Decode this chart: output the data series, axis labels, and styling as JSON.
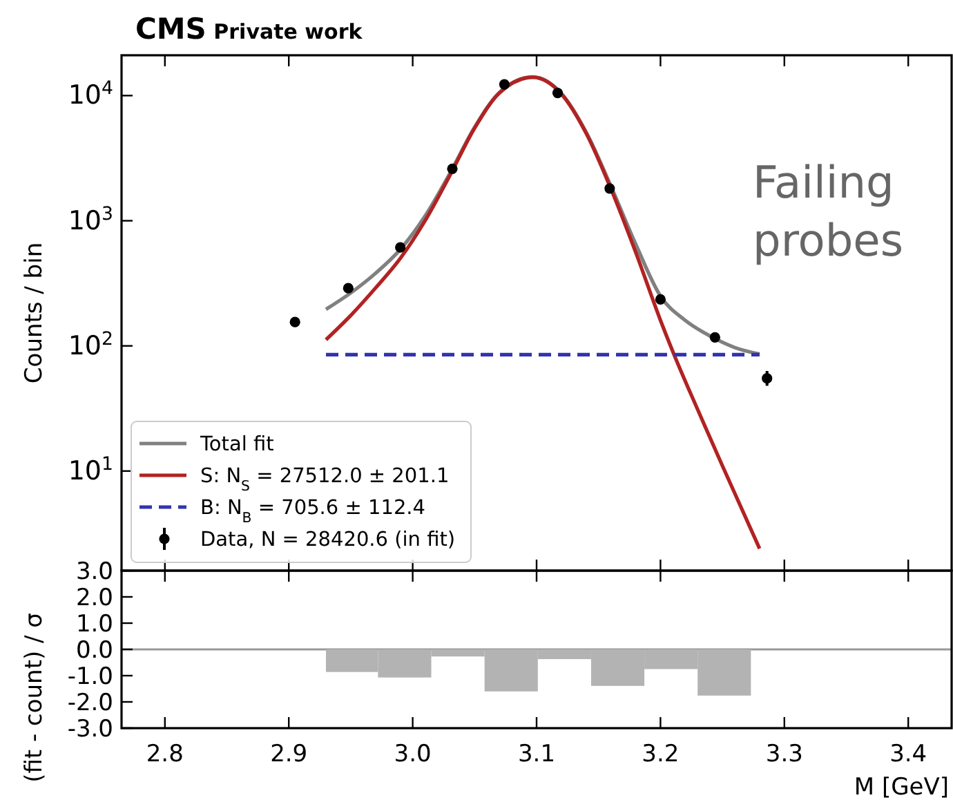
{
  "chart_data": [
    {
      "type": "line",
      "title": "CMS Private work",
      "ylabel": "Counts / bin",
      "log": true,
      "legend": "bottom left",
      "xlim": [
        2.765,
        3.435
      ],
      "xticks": [
        2.8,
        2.9,
        3,
        3.1,
        3.2,
        3.3,
        3.4
      ],
      "tick_labels": "y",
      "ylim": [
        1.6,
        21000
      ],
      "yticks": [
        {
          "value": 10,
          "label": "10$^{1}$"
        },
        {
          "value": 100,
          "label": "10$^{2}$"
        },
        {
          "value": 1000,
          "label": "10$^{3}$"
        },
        {
          "value": 10000,
          "label": "10$^{4}$"
        }
      ],
      "annotations": [
        "Failing probes"
      ],
      "series": [
        {
          "name": "Total fit",
          "color": "#808080",
          "x": [
            2.93,
            2.95,
            2.97,
            2.99,
            3.01,
            3.03,
            3.05,
            3.07,
            3.097,
            3.12,
            3.14,
            3.16,
            3.18,
            3.2,
            3.22,
            3.24,
            3.26,
            3.28
          ],
          "values": [
            196,
            265,
            380,
            590,
            1090,
            2390,
            5590,
            10600,
            14100,
            10400,
            5100,
            1890,
            650,
            250,
            160,
            120,
            97,
            86
          ]
        },
        {
          "name": "S: N$_{S}$ = 27512.0 ± 201.1",
          "color": "#b22222",
          "x": [
            2.93,
            2.95,
            2.97,
            2.99,
            3.01,
            3.03,
            3.05,
            3.07,
            3.097,
            3.12,
            3.14,
            3.16,
            3.18,
            3.2,
            3.211,
            3.23,
            3.25,
            3.28
          ],
          "values": [
            112,
            175,
            290,
            500,
            1000,
            2300,
            5500,
            10500,
            14000,
            10300,
            5000,
            1800,
            560,
            160,
            85,
            31,
            11,
            2.4
          ]
        },
        {
          "name": "B: N$_{B}$ = 705.6 ± 112.4",
          "line_style": "dashed",
          "color": "#3333b0",
          "x": [
            2.93,
            3.28
          ],
          "values": [
            85,
            85
          ]
        },
        {
          "name": "Data, N = 28420.6 (in fit)",
          "type": "scatter",
          "marker": "circle",
          "color": "#000000",
          "x": [
            2.905,
            2.948,
            2.99,
            3.032,
            3.074,
            3.117,
            3.159,
            3.2,
            3.244,
            3.286
          ],
          "values": [
            155,
            289,
            612,
            2600,
            12300,
            10500,
            1810,
            235,
            117,
            55
          ],
          "errors": [
            null,
            null,
            null,
            null,
            null,
            null,
            null,
            null,
            null,
            [
              48,
              63
            ]
          ]
        }
      ]
    },
    {
      "type": "histogram",
      "xlabel": "M [GeV]",
      "ylabel": "(fit - count) / σ",
      "color": "#b3b3b3",
      "xlim": [
        2.765,
        3.435
      ],
      "xticks": [
        2.8,
        2.9,
        {
          "value": 3,
          "label": "3.0"
        },
        3.1,
        3.2,
        3.3,
        3.4
      ],
      "ylim": [
        -3,
        3
      ],
      "yticks": [
        {
          "value": -3,
          "label": "-3.0"
        },
        {
          "value": -2,
          "label": "-2.0"
        },
        {
          "value": -1,
          "label": "-1.0"
        },
        {
          "value": 0,
          "label": "0.0"
        },
        {
          "value": 1,
          "label": "1.0"
        },
        {
          "value": 2,
          "label": "2.0"
        },
        {
          "value": 3,
          "label": "3.0"
        }
      ],
      "bins": [
        2.93,
        2.972,
        3.015,
        3.058,
        3.101,
        3.144,
        3.187,
        3.23,
        3.273
      ],
      "values": [
        -0.86,
        -1.07,
        -0.27,
        -1.6,
        -0.37,
        -1.39,
        -0.75,
        -1.76
      ],
      "ref_lines": [
        {
          "axis": "y",
          "value": 0,
          "color": "#999999"
        }
      ]
    }
  ]
}
